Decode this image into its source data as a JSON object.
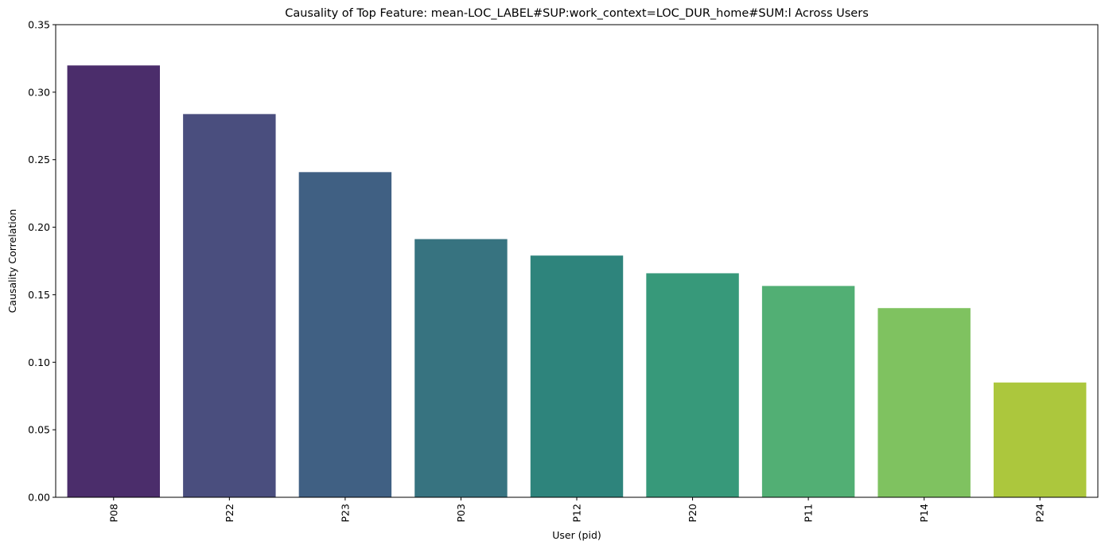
{
  "chart_data": {
    "type": "bar",
    "title": "Causality of Top Feature: mean-LOC_LABEL#SUP:work_context=LOC_DUR_home#SUM:l Across Users",
    "xlabel": "User (pid)",
    "ylabel": "Causality Correlation",
    "categories": [
      "P08",
      "P22",
      "P23",
      "P03",
      "P12",
      "P20",
      "P11",
      "P14",
      "P24"
    ],
    "values": [
      0.3198,
      0.2838,
      0.2408,
      0.1912,
      0.179,
      0.1659,
      0.1565,
      0.1401,
      0.085
    ],
    "colors": [
      "#4b2d6b",
      "#4a4e7e",
      "#406083",
      "#377380",
      "#2e847c",
      "#37997a",
      "#52af74",
      "#7fc260",
      "#acc73d"
    ],
    "ylim": [
      0,
      0.35
    ],
    "yticks": [
      "0.00",
      "0.05",
      "0.10",
      "0.15",
      "0.20",
      "0.25",
      "0.30",
      "0.35"
    ],
    "grid": false,
    "legend": "none",
    "xtick_rotation": "vertical"
  }
}
